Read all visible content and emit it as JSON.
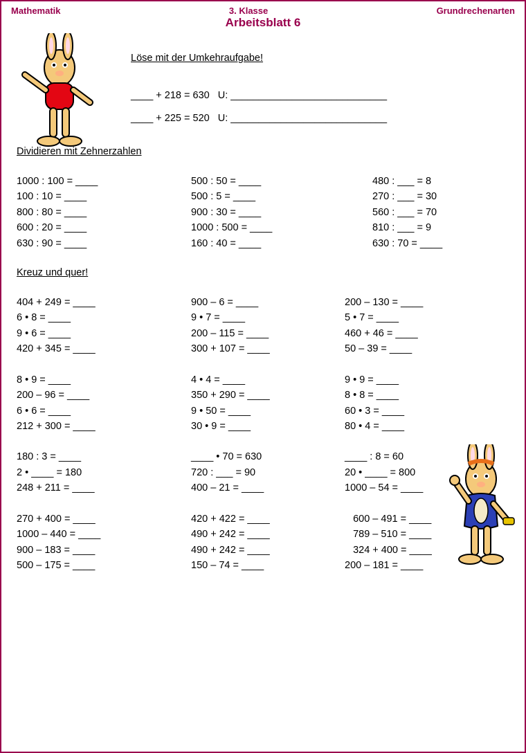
{
  "header": {
    "left": "Mathematik",
    "center": "3. Klasse",
    "right": "Grundrechenarten"
  },
  "title": "Arbeitsblatt 6",
  "sec1": {
    "heading": "Löse mit der Umkehraufgabe!",
    "lines": [
      "____ + 218 = 630   U: ____________________________",
      "____ + 225 = 520   U: ____________________________"
    ]
  },
  "sec2": {
    "heading": "Dividieren mit Zehnerzahlen",
    "rows": [
      [
        "1000 : 100 = ____",
        "500 : 50 = ____",
        "480 : ___ = 8"
      ],
      [
        "100 : 10 = ____",
        "500 : 5 = ____",
        "270 : ___ = 30"
      ],
      [
        "800 : 80 = ____",
        "900 : 30 = ____",
        "560 : ___ = 70"
      ],
      [
        "600 : 20 = ____",
        "1000 : 500 = ____",
        "810 : ___ = 9"
      ],
      [
        "630 : 90 = ____",
        "160 : 40 = ____",
        "630 : 70 = ____"
      ]
    ]
  },
  "sec3": {
    "heading": "Kreuz und quer!",
    "groups": [
      [
        [
          "404 + 249 = ____",
          "900 – 6 = ____",
          "200 – 130 = ____"
        ],
        [
          "6 • 8 = ____",
          "9 • 7 = ____",
          "5 • 7 = ____"
        ],
        [
          "9 • 6 = ____",
          "200 – 115 = ____",
          "460 + 46 = ____"
        ],
        [
          "420 + 345 = ____",
          "300 + 107 = ____",
          "50 – 39 = ____"
        ]
      ],
      [
        [
          "8 • 9 = ____",
          "4 • 4 = ____",
          "9 • 9 = ____"
        ],
        [
          "200 – 96 = ____",
          "350 + 290 = ____",
          "8 • 8 = ____"
        ],
        [
          "6 • 6 = ____",
          "9 • 50 = ____",
          "60 • 3 = ____"
        ],
        [
          "212 + 300 = ____",
          "30 • 9 = ____",
          "80 • 4 = ____"
        ]
      ],
      [
        [
          "180 : 3 = ____",
          "____ • 70 = 630",
          "____ : 8 = 60"
        ],
        [
          "2 • ____ = 180",
          "720 : ___ = 90",
          "20 • ____ = 800"
        ],
        [
          "248 + 211 = ____",
          "400 – 21 = ____",
          "1000 – 54 = ____"
        ]
      ],
      [
        [
          "270 + 400 = ____",
          "420 + 422 = ____",
          "   600 – 491 = ____"
        ],
        [
          "1000 – 440 = ____",
          "490 + 242 = ____",
          "   789 – 510 = ____"
        ],
        [
          "900 – 183 = ____",
          "490 + 242 = ____",
          "   324 + 400 = ____"
        ],
        [
          "500 – 175 = ____",
          "150 – 74 = ____",
          "200 – 181 = ____"
        ]
      ]
    ]
  },
  "colors": {
    "brand": "#99004d",
    "text": "#000000",
    "bg": "#ffffff"
  }
}
